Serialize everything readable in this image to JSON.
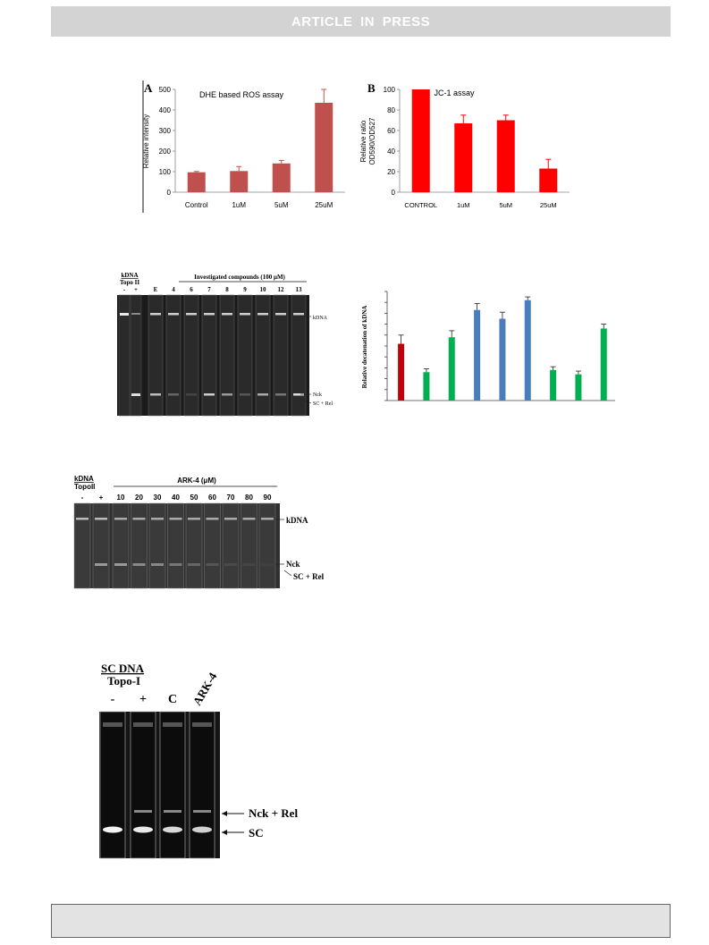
{
  "banner": {
    "text": "ARTICLE IN PRESS"
  },
  "chart_data": [
    {
      "id": "A",
      "type": "bar",
      "panel_label": "A",
      "title": "DHE based ROS assay",
      "ylabel": "Relative intensity",
      "xlabel": "",
      "categories": [
        "Control",
        "1uM",
        "5uM",
        "25uM"
      ],
      "values": [
        97,
        103,
        140,
        435
      ],
      "errors": [
        4,
        22,
        15,
        65
      ],
      "ylim": [
        0,
        500
      ],
      "yticks": [
        0,
        100,
        200,
        300,
        400,
        500
      ],
      "color": "#c0504d"
    },
    {
      "id": "B",
      "type": "bar",
      "panel_label": "B",
      "title": "JC-1 assay",
      "ylabel": "Relative ratio OD590/OD527",
      "ylabel_lines": [
        "Relative ratio",
        "OD590/OD527"
      ],
      "xlabel": "",
      "categories": [
        "CONTROL",
        "1uM",
        "5uM",
        "25uM"
      ],
      "values": [
        100,
        67,
        70,
        23
      ],
      "errors": [
        0,
        8,
        5,
        9
      ],
      "ylim": [
        0,
        100
      ],
      "yticks": [
        0,
        20,
        40,
        60,
        80,
        100
      ],
      "color": "#ff0000"
    },
    {
      "id": "C",
      "type": "bar",
      "title": "",
      "ylabel": "Relative decatenation of kDNA",
      "xlabel": "",
      "categories": [
        "",
        "",
        "",
        "",
        "",
        "",
        "",
        "",
        ""
      ],
      "values": [
        0.52,
        0.26,
        0.58,
        0.83,
        0.75,
        0.92,
        0.28,
        0.24,
        0.66
      ],
      "errors": [
        0.08,
        0.03,
        0.06,
        0.06,
        0.06,
        0.03,
        0.03,
        0.03,
        0.04
      ],
      "colors": [
        "#c0000b",
        "#00b050",
        "#00b050",
        "#4a7ebb",
        "#4a7ebb",
        "#4a7ebb",
        "#00b050",
        "#00b050",
        "#00b050"
      ],
      "ylim": [
        0,
        1
      ],
      "ytick_count": 11
    }
  ],
  "gel1": {
    "header_left": "kDNA",
    "header_left2": "Topo II",
    "signs": [
      "-",
      "+"
    ],
    "group_label": "Investigated compounds (100 μM)",
    "lanes": [
      "E",
      "4",
      "6",
      "7",
      "8",
      "9",
      "10",
      "12",
      "13"
    ],
    "labels": [
      "kDNA",
      "Nck",
      "SC + Rel"
    ]
  },
  "gel2": {
    "header_left": "kDNA",
    "header_left2": "TopoII",
    "signs": [
      "-",
      "+"
    ],
    "group_label": "ARK-4 (μM)",
    "lanes": [
      "10",
      "20",
      "30",
      "40",
      "50",
      "60",
      "70",
      "80",
      "90"
    ],
    "labels": [
      "kDNA",
      "Nck",
      "SC + Rel"
    ]
  },
  "gel3": {
    "header_left": "SC DNA",
    "header_left2": "Topo-I",
    "signs": [
      "-",
      "+"
    ],
    "lane_c": "C",
    "lane_ark": "ARK-4",
    "labels": [
      "Nck + Rel",
      "SC"
    ]
  }
}
